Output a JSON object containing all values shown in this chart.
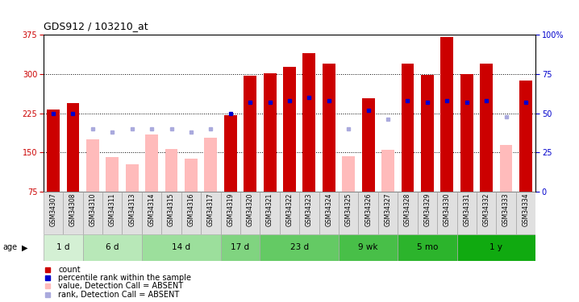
{
  "title": "GDS912 / 103210_at",
  "samples": [
    "GSM34307",
    "GSM34308",
    "GSM34310",
    "GSM34311",
    "GSM34313",
    "GSM34314",
    "GSM34315",
    "GSM34316",
    "GSM34317",
    "GSM34319",
    "GSM34320",
    "GSM34321",
    "GSM34322",
    "GSM34323",
    "GSM34324",
    "GSM34325",
    "GSM34326",
    "GSM34327",
    "GSM34328",
    "GSM34329",
    "GSM34330",
    "GSM34331",
    "GSM34332",
    "GSM34333",
    "GSM34334"
  ],
  "count_present": [
    232,
    244,
    null,
    null,
    null,
    null,
    null,
    null,
    null,
    222,
    297,
    302,
    314,
    340,
    320,
    null,
    254,
    null,
    320,
    298,
    370,
    300,
    320,
    null,
    288
  ],
  "count_absent": [
    null,
    null,
    175,
    142,
    128,
    185,
    157,
    138,
    178,
    null,
    null,
    null,
    null,
    null,
    null,
    143,
    null,
    155,
    null,
    null,
    null,
    null,
    null,
    165,
    null
  ],
  "rank_present": [
    50,
    50,
    null,
    null,
    null,
    null,
    null,
    null,
    null,
    50,
    57,
    57,
    58,
    60,
    58,
    null,
    52,
    null,
    58,
    57,
    58,
    57,
    58,
    null,
    57
  ],
  "rank_absent": [
    null,
    null,
    40,
    38,
    40,
    40,
    40,
    38,
    40,
    null,
    null,
    null,
    null,
    null,
    null,
    40,
    null,
    46,
    null,
    null,
    null,
    null,
    null,
    48,
    null
  ],
  "age_groups": [
    {
      "label": "1 d",
      "start": 0,
      "end": 2
    },
    {
      "label": "6 d",
      "start": 2,
      "end": 5
    },
    {
      "label": "14 d",
      "start": 5,
      "end": 9
    },
    {
      "label": "17 d",
      "start": 9,
      "end": 11
    },
    {
      "label": "23 d",
      "start": 11,
      "end": 15
    },
    {
      "label": "9 wk",
      "start": 15,
      "end": 18
    },
    {
      "label": "5 mo",
      "start": 18,
      "end": 21
    },
    {
      "label": "1 y",
      "start": 21,
      "end": 25
    }
  ],
  "age_colors": [
    "#d4f0d4",
    "#b8e8b8",
    "#9cdf9c",
    "#80d480",
    "#64ca64",
    "#48bf48",
    "#2cb42c",
    "#10aa10"
  ],
  "ylim_left": [
    75,
    375
  ],
  "ylim_right": [
    0,
    100
  ],
  "yticks_left": [
    75,
    150,
    225,
    300,
    375
  ],
  "yticks_right": [
    0,
    25,
    50,
    75,
    100
  ],
  "bar_color_present": "#cc0000",
  "bar_color_absent": "#ffbbbb",
  "rank_color_present": "#0000cc",
  "rank_color_absent": "#aaaadd",
  "bar_width": 0.65,
  "grid_dotted_at": [
    150,
    225,
    300
  ]
}
